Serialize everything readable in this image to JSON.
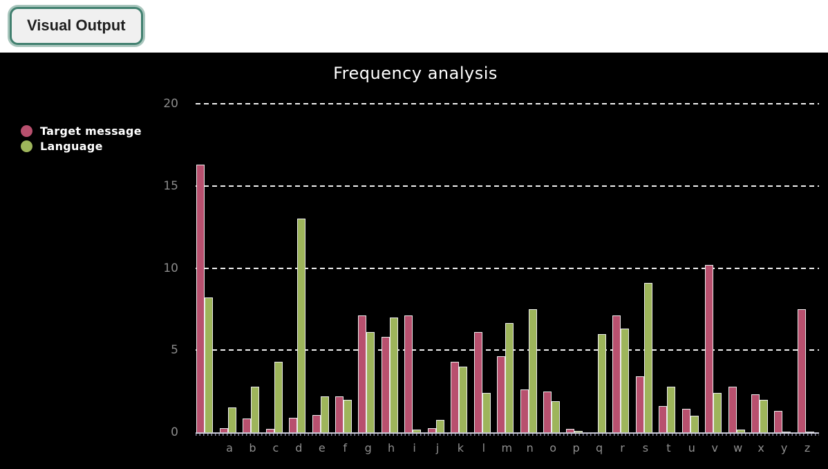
{
  "header": {
    "tab_label": "Visual Output"
  },
  "colors": {
    "tab_border": "#41806f",
    "chart_background": "#000000",
    "target_message": "#b8506e",
    "language": "#9eb55b",
    "gridline": "#f2f2f2",
    "tick_label": "#8c8c8c"
  },
  "chart_data": {
    "type": "bar",
    "title": "Frequency analysis",
    "xlabel": "",
    "ylabel": "",
    "ylim": [
      0,
      20
    ],
    "yticks": [
      0,
      5,
      10,
      15,
      20
    ],
    "grid": "horizontal-dashed",
    "legend_position": "left",
    "categories": [
      " ",
      "a",
      "b",
      "c",
      "d",
      "e",
      "f",
      "g",
      "h",
      "i",
      "j",
      "k",
      "l",
      "m",
      "n",
      "o",
      "p",
      "q",
      "r",
      "s",
      "t",
      "u",
      "v",
      "w",
      "x",
      "y",
      "z"
    ],
    "series": [
      {
        "name": "Target message",
        "color": "#b8506e",
        "values": [
          16.3,
          0.25,
          0.85,
          0.2,
          0.9,
          1.05,
          2.2,
          7.1,
          5.8,
          7.1,
          0.25,
          4.3,
          6.1,
          4.65,
          2.6,
          2.5,
          0.2,
          0,
          7.1,
          3.4,
          1.6,
          1.45,
          10.2,
          2.8,
          2.3,
          1.3,
          7.5
        ]
      },
      {
        "name": "Language",
        "color": "#9eb55b",
        "values": [
          8.2,
          1.5,
          2.8,
          4.3,
          13,
          2.2,
          2,
          6.1,
          7,
          0.15,
          0.75,
          4,
          2.4,
          6.65,
          7.5,
          1.9,
          0.1,
          6,
          6.3,
          9.1,
          2.8,
          1,
          2.4,
          0.15,
          2,
          0.05,
          0.05
        ]
      }
    ]
  }
}
